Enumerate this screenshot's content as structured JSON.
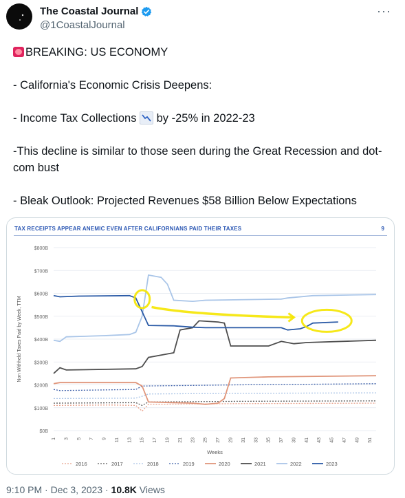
{
  "author": {
    "name": "The Coastal Journal",
    "handle": "@1CoastalJournal",
    "avatar_icon": "crescent-moon-logo",
    "verified_icon": "verified-badge-icon"
  },
  "more_label": "···",
  "tweet_lines": {
    "l1": "BREAKING: US ECONOMY",
    "l2": "- California's Economic Crisis Deepens:",
    "l3a": "- Income Tax Collections",
    "l3b": " by -25% in 2022-23",
    "l4": "-This decline is similar to those seen during the Great Recession and dot-com bust",
    "l5": "- Bleak Outlook: Projected Revenues $58 Billion Below Expectations"
  },
  "footer": {
    "time": "9:10 PM",
    "date": "Dec 3, 2023",
    "views": "10.8K",
    "views_label": "Views",
    "sep": "·"
  },
  "chart_data": {
    "type": "line",
    "title": "TAX RECEIPTS APPEAR ANEMIC EVEN AFTER CALIFORNIANS PAID THEIR TAXES",
    "page_number": "9",
    "xlabel": "Weeks",
    "ylabel": "Non Withheld Taxes Paid by Week, TTM",
    "yticks": [
      "$0B",
      "$100B",
      "$200B",
      "$300B",
      "$400B",
      "$500B",
      "$600B",
      "$700B",
      "$800B"
    ],
    "ylim": [
      0,
      800
    ],
    "xlim": [
      1,
      52
    ],
    "xticks": [
      1,
      3,
      5,
      7,
      9,
      11,
      13,
      15,
      17,
      19,
      21,
      23,
      25,
      27,
      29,
      31,
      33,
      35,
      37,
      39,
      41,
      43,
      45,
      47,
      49,
      51
    ],
    "grid": true,
    "legend_position": "bottom",
    "series": [
      {
        "name": "2016",
        "color": "#e8a08a",
        "dash": "2,2",
        "points": [
          [
            1,
            110
          ],
          [
            10,
            112
          ],
          [
            14,
            110
          ],
          [
            15,
            85
          ],
          [
            16,
            115
          ],
          [
            30,
            118
          ],
          [
            52,
            120
          ]
        ]
      },
      {
        "name": "2017",
        "color": "#5a5a5a",
        "dash": "2,2",
        "points": [
          [
            1,
            120
          ],
          [
            14,
            122
          ],
          [
            15,
            110
          ],
          [
            16,
            125
          ],
          [
            30,
            128
          ],
          [
            52,
            130
          ]
        ]
      },
      {
        "name": "2018",
        "color": "#aac4e6",
        "dash": "2,2",
        "points": [
          [
            1,
            140
          ],
          [
            14,
            142
          ],
          [
            15,
            150
          ],
          [
            16,
            160
          ],
          [
            30,
            163
          ],
          [
            52,
            165
          ]
        ]
      },
      {
        "name": "2019",
        "color": "#3b5ea8",
        "dash": "2,2",
        "points": [
          [
            1,
            180
          ],
          [
            2,
            175
          ],
          [
            14,
            180
          ],
          [
            15,
            195
          ],
          [
            30,
            200
          ],
          [
            52,
            205
          ]
        ]
      },
      {
        "name": "2020",
        "color": "#e0957a",
        "dash": "",
        "points": [
          [
            1,
            205
          ],
          [
            2,
            210
          ],
          [
            14,
            210
          ],
          [
            15,
            195
          ],
          [
            16,
            125
          ],
          [
            23,
            120
          ],
          [
            25,
            115
          ],
          [
            27,
            120
          ],
          [
            28,
            140
          ],
          [
            29,
            230
          ],
          [
            35,
            235
          ],
          [
            52,
            240
          ]
        ]
      },
      {
        "name": "2021",
        "color": "#4d4d4d",
        "dash": "",
        "points": [
          [
            1,
            250
          ],
          [
            2,
            275
          ],
          [
            3,
            265
          ],
          [
            14,
            270
          ],
          [
            15,
            280
          ],
          [
            16,
            320
          ],
          [
            20,
            340
          ],
          [
            21,
            440
          ],
          [
            23,
            450
          ],
          [
            24,
            480
          ],
          [
            27,
            475
          ],
          [
            28,
            470
          ],
          [
            29,
            370
          ],
          [
            35,
            370
          ],
          [
            37,
            390
          ],
          [
            39,
            380
          ],
          [
            41,
            385
          ],
          [
            52,
            395
          ]
        ]
      },
      {
        "name": "2022",
        "color": "#a9c5e8",
        "dash": "",
        "points": [
          [
            1,
            395
          ],
          [
            2,
            390
          ],
          [
            3,
            410
          ],
          [
            9,
            415
          ],
          [
            13,
            420
          ],
          [
            14,
            430
          ],
          [
            15,
            500
          ],
          [
            16,
            680
          ],
          [
            18,
            670
          ],
          [
            19,
            640
          ],
          [
            20,
            570
          ],
          [
            23,
            565
          ],
          [
            25,
            570
          ],
          [
            37,
            575
          ],
          [
            38,
            580
          ],
          [
            42,
            590
          ],
          [
            52,
            595
          ]
        ]
      },
      {
        "name": "2023",
        "color": "#2a5aa6",
        "dash": "",
        "points": [
          [
            1,
            590
          ],
          [
            2,
            585
          ],
          [
            5,
            588
          ],
          [
            13,
            590
          ],
          [
            14,
            580
          ],
          [
            15,
            520
          ],
          [
            16,
            460
          ],
          [
            20,
            458
          ],
          [
            23,
            452
          ],
          [
            25,
            450
          ],
          [
            37,
            450
          ],
          [
            38,
            440
          ],
          [
            40,
            445
          ],
          [
            41,
            455
          ],
          [
            42,
            470
          ],
          [
            46,
            475
          ]
        ]
      }
    ],
    "annotation": {
      "type": "yellow highlighter arrow and circles",
      "color": "#f5e600"
    }
  }
}
